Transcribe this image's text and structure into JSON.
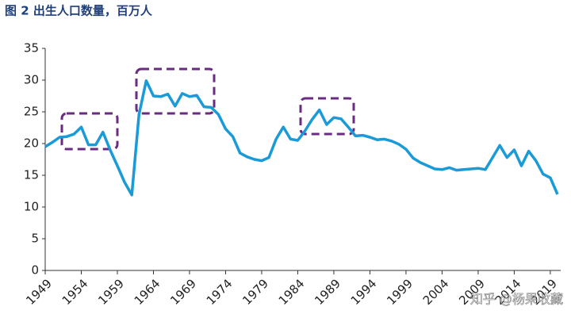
{
  "chart_data": {
    "type": "line",
    "title": "图 2 出生人口数量，百万人",
    "watermark": "知乎 @杨果收藏",
    "x": [
      1949,
      1950,
      1951,
      1952,
      1953,
      1954,
      1955,
      1956,
      1957,
      1958,
      1959,
      1960,
      1961,
      1962,
      1963,
      1964,
      1965,
      1966,
      1967,
      1968,
      1969,
      1970,
      1971,
      1972,
      1973,
      1974,
      1975,
      1976,
      1977,
      1978,
      1979,
      1980,
      1981,
      1982,
      1983,
      1984,
      1985,
      1986,
      1987,
      1988,
      1989,
      1990,
      1991,
      1992,
      1993,
      1994,
      1995,
      1996,
      1997,
      1998,
      1999,
      2000,
      2001,
      2002,
      2003,
      2004,
      2005,
      2006,
      2007,
      2008,
      2009,
      2010,
      2011,
      2012,
      2013,
      2014,
      2015,
      2016,
      2017,
      2018,
      2019,
      2020
    ],
    "series": [
      {
        "name": "出生人口",
        "color": "#1a9ad6",
        "values": [
          19.5,
          20.2,
          21.0,
          21.1,
          21.5,
          22.6,
          19.8,
          19.8,
          21.8,
          19.0,
          16.5,
          13.9,
          11.9,
          24.6,
          29.9,
          27.5,
          27.4,
          27.8,
          25.9,
          27.9,
          27.4,
          27.6,
          25.8,
          25.7,
          24.6,
          22.3,
          21.1,
          18.5,
          17.9,
          17.5,
          17.3,
          17.8,
          20.7,
          22.6,
          20.7,
          20.5,
          22.0,
          23.8,
          25.3,
          23.0,
          24.1,
          23.9,
          22.6,
          21.2,
          21.3,
          21.0,
          20.6,
          20.7,
          20.4,
          19.9,
          19.1,
          17.7,
          17.0,
          16.5,
          16.0,
          15.9,
          16.2,
          15.8,
          15.9,
          16.0,
          16.1,
          15.9,
          17.8,
          19.7,
          17.8,
          19.0,
          16.5,
          18.8,
          17.3,
          15.2,
          14.6,
          12.0
        ]
      }
    ],
    "xlim": [
      1949,
      2020
    ],
    "xticks": [
      1949,
      1954,
      1959,
      1964,
      1969,
      1974,
      1979,
      1984,
      1989,
      1994,
      1999,
      2004,
      2009,
      2014,
      2019
    ],
    "ylim": [
      0,
      35
    ],
    "yticks": [
      0,
      5,
      10,
      15,
      20,
      25,
      30,
      35
    ],
    "grid": false
  }
}
